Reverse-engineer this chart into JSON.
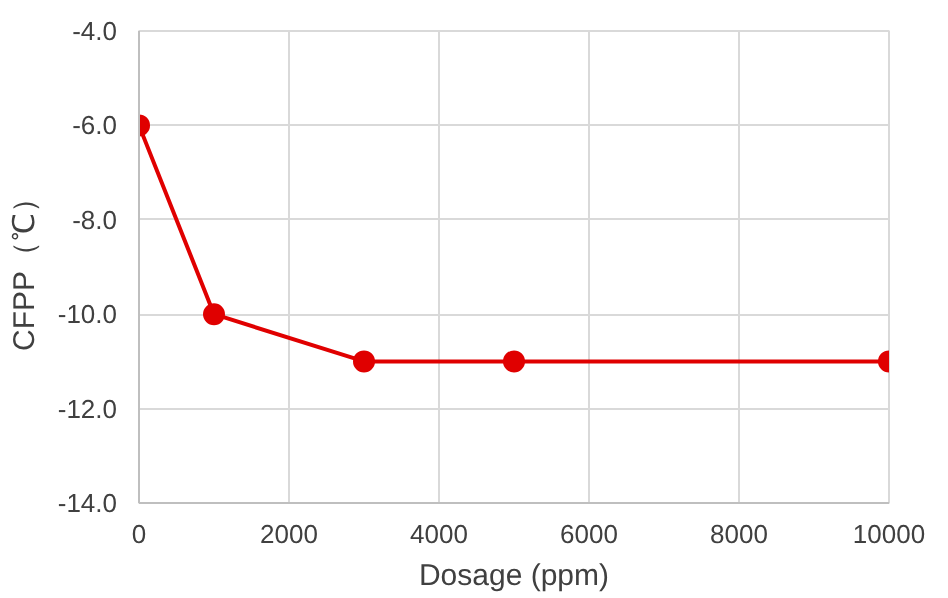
{
  "chart_data": {
    "type": "line",
    "xlabel": "Dosage (ppm)",
    "ylabel": "CFPP（℃）",
    "x": [
      0,
      1000,
      3000,
      5000,
      10000
    ],
    "series": [
      {
        "color": "#e00000",
        "values": [
          -6,
          -10,
          -11,
          -11,
          -11
        ]
      }
    ],
    "xlim": [
      0,
      10000
    ],
    "xticks": [
      0,
      2000,
      4000,
      6000,
      8000,
      10000
    ],
    "ylim": [
      -14,
      -4
    ],
    "yticks": [
      {
        "value": -14,
        "label": "-14.0"
      },
      {
        "value": -12,
        "label": "-12.0"
      },
      {
        "value": -10,
        "label": "-10.0"
      },
      {
        "value": -8,
        "label": "-8.0"
      },
      {
        "value": -6,
        "label": "-6.0"
      },
      {
        "value": -4,
        "label": "-4.0"
      }
    ],
    "grid": true,
    "marker": "circle",
    "line_style": "solid"
  }
}
